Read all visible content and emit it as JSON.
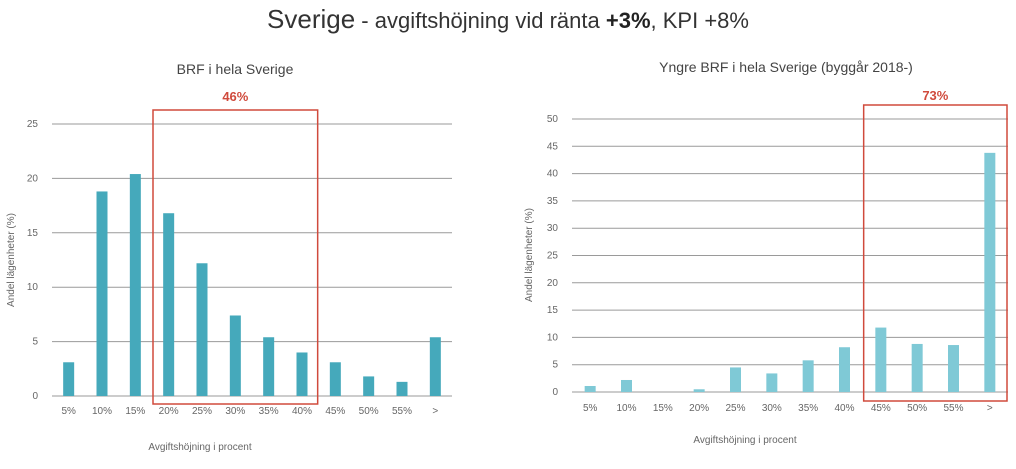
{
  "title": {
    "country": "Sverige",
    "mid": " - avgiftshöjning vid ränta ",
    "rate": "+3%",
    "tail": ", KPI +8%"
  },
  "colors": {
    "left_bar": "#45a9bb",
    "right_bar": "#7fc9d6",
    "highlight": "#d04a3c",
    "grid": "#9a9a9a"
  },
  "chart_data": [
    {
      "type": "bar",
      "title": "BRF i hela Sverige",
      "xlabel": "Avgiftshöjning i procent",
      "ylabel": "Andel lägenheter (%)",
      "ylim": [
        0,
        25
      ],
      "yticks": [
        "0",
        "5",
        "10",
        "15",
        "20",
        "25"
      ],
      "categories": [
        "5%",
        "10%",
        "15%",
        "20%",
        "25%",
        "30%",
        "35%",
        "40%",
        "45%",
        "50%",
        "55%",
        ">"
      ],
      "values": [
        3.1,
        18.8,
        20.4,
        16.8,
        12.2,
        7.4,
        5.4,
        4.0,
        3.1,
        1.8,
        1.3,
        5.4
      ],
      "highlight": {
        "from": "20%",
        "to": "40%",
        "label": "46%"
      },
      "grid": true
    },
    {
      "type": "bar",
      "title": "Yngre BRF i hela Sverige (byggår 2018-)",
      "xlabel": "Avgiftshöjning i procent",
      "ylabel": "Andel lägenheter (%)",
      "ylim": [
        0,
        50
      ],
      "yticks": [
        "0",
        "5",
        "10",
        "15",
        "20",
        "25",
        "30",
        "35",
        "40",
        "45",
        "50"
      ],
      "categories": [
        "5%",
        "10%",
        "15%",
        "20%",
        "25%",
        "30%",
        "35%",
        "40%",
        "45%",
        "50%",
        "55%",
        ">"
      ],
      "values": [
        1.1,
        2.2,
        0,
        0.5,
        4.5,
        3.4,
        5.8,
        8.2,
        11.8,
        8.8,
        8.6,
        43.8
      ],
      "highlight": {
        "from": "45%",
        "to": ">",
        "label": "73%"
      },
      "grid": true
    }
  ]
}
